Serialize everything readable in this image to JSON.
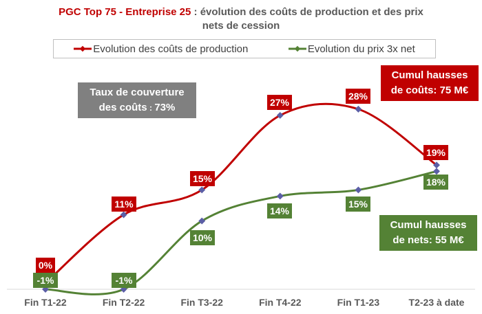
{
  "chart_data": {
    "type": "line",
    "title_brand": "PGC Top 75 - Entreprise 25",
    "title_rest_1": " : évolution des coûts de production et des prix",
    "title_rest_2": "nets de cession",
    "categories": [
      "Fin T1-22",
      "Fin T2-22",
      "Fin T3-22",
      "Fin T4-22",
      "Fin T1-23",
      "T2-23 à date"
    ],
    "series": [
      {
        "name": "Evolution des coûts de production",
        "color": "#C00000",
        "values": [
          0,
          11,
          15,
          27,
          28,
          19
        ],
        "labels": [
          "0%",
          "11%",
          "15%",
          "27%",
          "28%",
          "19%"
        ]
      },
      {
        "name": "Evolution du prix 3x net",
        "color": "#548235",
        "values": [
          -1,
          -1,
          10,
          14,
          15,
          18
        ],
        "labels": [
          "-1%",
          "-1%",
          "10%",
          "14%",
          "15%",
          "18%"
        ]
      }
    ],
    "marker_color": "#5B5EA6",
    "legend_position": "top",
    "grid": false,
    "smooth": true,
    "annotations": {
      "coverage_line1": "Taux de couverture",
      "coverage_line2_a": "des coûts",
      "coverage_line2_b": " : ",
      "coverage_line2_c": "73%",
      "cost_line1": "Cumul hausses",
      "cost_line2": "de coûts: 75 M€",
      "net_line1": "Cumul hausses",
      "net_line2": "de nets: 55 M€"
    }
  }
}
